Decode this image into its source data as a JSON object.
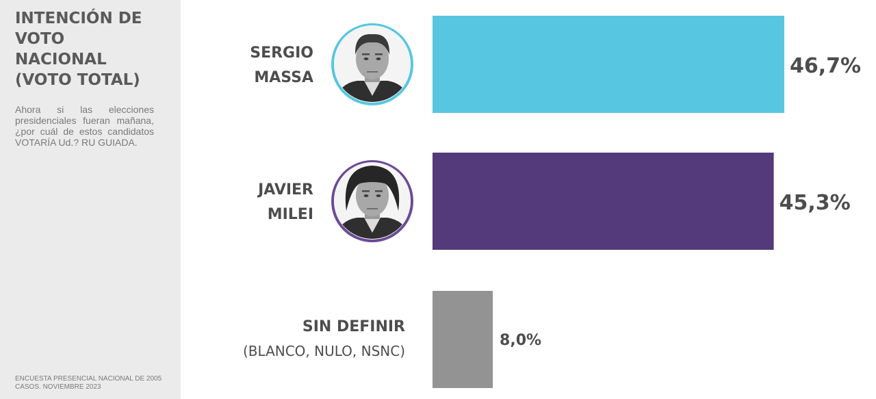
{
  "sidebar": {
    "title": "INTENCIÓN DE\nVOTO\nNACIONAL\n(VOTO TOTAL)",
    "question": "Ahora si las elecciones presidenciales fueran mañana, ¿por cuál de estos candidatos VOTARÍA Ud.? RU GUIADA.",
    "source": "ENCUESTA PRESENCIAL NACIONAL DE 2005 CASOS. NOVIEMBRE 2023"
  },
  "chart_data": {
    "type": "bar",
    "orientation": "horizontal",
    "categories": [
      {
        "name_lines": [
          "SERGIO",
          "MASSA"
        ],
        "subtitle": ""
      },
      {
        "name_lines": [
          "JAVIER",
          "MILEI"
        ],
        "subtitle": ""
      },
      {
        "name_lines": [
          "SIN DEFINIR"
        ],
        "subtitle": "(BLANCO, NULO, NSNC)"
      }
    ],
    "values": [
      46.7,
      45.3,
      8.0
    ],
    "value_labels": [
      "46,7%",
      "45,3%",
      "8,0%"
    ],
    "colors": [
      "#57c6e1",
      "#543a7a",
      "#939393"
    ],
    "avatars": [
      {
        "icon": "sergio-massa-portrait",
        "ring_color": "#57c6e1"
      },
      {
        "icon": "javier-milei-portrait",
        "ring_color": "#6b4b95"
      },
      null
    ],
    "xlim": [
      0,
      46.7
    ],
    "grid": false,
    "legend": "none"
  }
}
